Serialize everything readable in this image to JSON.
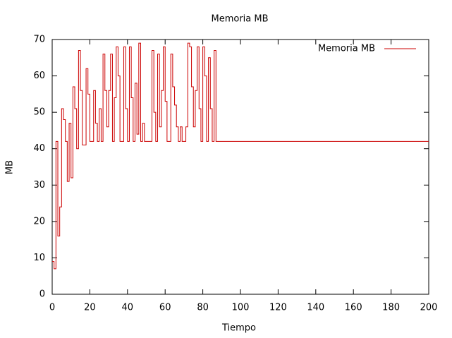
{
  "chart_data": {
    "type": "step",
    "title": "Memoria MB",
    "xlabel": "Tiempo",
    "ylabel": "MB",
    "x": [
      0,
      1,
      2,
      3,
      4,
      5,
      6,
      7,
      8,
      9,
      10,
      11,
      12,
      13,
      14,
      15,
      16,
      17,
      18,
      19,
      20,
      21,
      22,
      23,
      24,
      25,
      26,
      27,
      28,
      29,
      30,
      31,
      32,
      33,
      34,
      35,
      36,
      37,
      38,
      39,
      40,
      41,
      42,
      43,
      44,
      45,
      46,
      47,
      48,
      49,
      50,
      51,
      52,
      53,
      54,
      55,
      56,
      57,
      58,
      59,
      60,
      61,
      62,
      63,
      64,
      65,
      66,
      67,
      68,
      69,
      70,
      71,
      72,
      73,
      74,
      75,
      76,
      77,
      78,
      79,
      80,
      81,
      82,
      83,
      84,
      85,
      86,
      87,
      200
    ],
    "series": [
      {
        "name": "Memoria MB",
        "color": "#cc0000",
        "values": [
          9,
          7,
          42,
          16,
          24,
          51,
          48,
          42,
          31,
          47,
          32,
          57,
          51,
          40,
          67,
          56,
          41,
          41,
          62,
          55,
          42,
          42,
          56,
          47,
          42,
          51,
          42,
          66,
          56,
          46,
          56,
          66,
          42,
          54,
          68,
          60,
          42,
          42,
          68,
          51,
          42,
          68,
          54,
          42,
          58,
          44,
          69,
          42,
          47,
          42,
          42,
          42,
          42,
          67,
          50,
          42,
          66,
          46,
          56,
          68,
          53,
          42,
          42,
          66,
          57,
          52,
          46,
          42,
          46,
          42,
          42,
          46,
          69,
          68,
          57,
          46,
          56,
          68,
          51,
          42,
          68,
          60,
          42,
          65,
          51,
          42,
          67,
          42,
          42
        ]
      }
    ],
    "xlim": [
      0,
      200
    ],
    "xticks": [
      0,
      20,
      40,
      60,
      80,
      100,
      120,
      140,
      160,
      180,
      200
    ],
    "ylim": [
      0,
      70
    ],
    "yticks": [
      0,
      10,
      20,
      30,
      40,
      50,
      60,
      70
    ],
    "legend": "upper right"
  }
}
